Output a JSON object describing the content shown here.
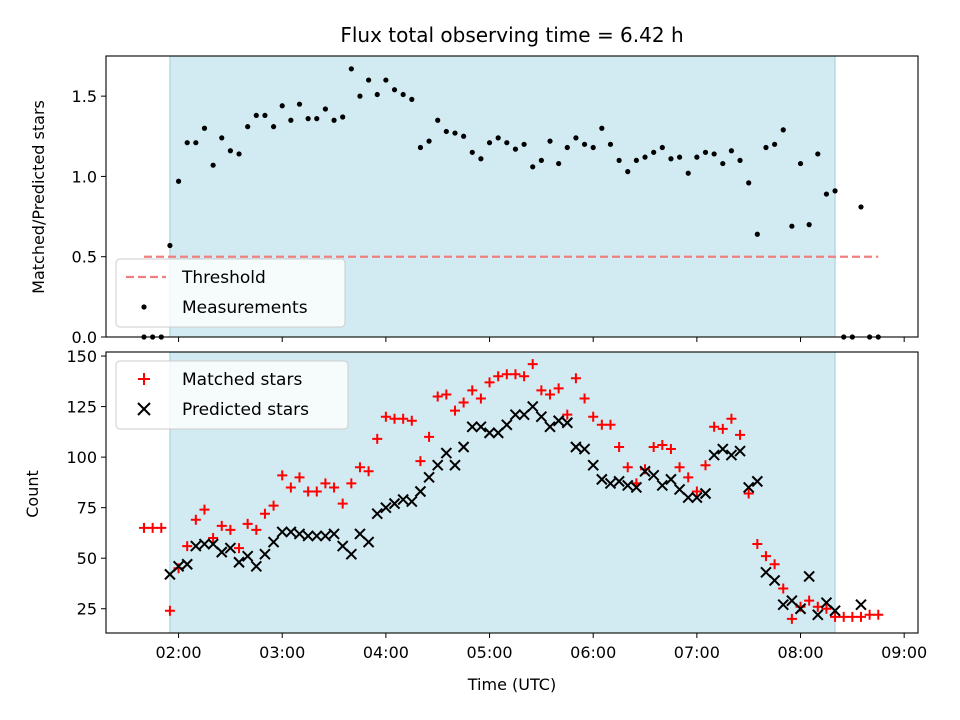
{
  "chart_data": [
    {
      "type": "scatter",
      "title": "Flux total observing time = 6.42 h",
      "xlabel": "",
      "ylabel": "Matched/Predicted stars",
      "xlim": [
        "01:18",
        "09:08"
      ],
      "ylim": [
        0,
        1.75
      ],
      "y_ticks": [
        0,
        0.5,
        1.0,
        1.5
      ],
      "y_tick_labels": [
        "0.0",
        "0.5",
        "1.0",
        "1.5"
      ],
      "shaded_range": [
        "01:55",
        "08:20"
      ],
      "shade_color": "#add8e6",
      "legend_position": "lower-left",
      "threshold": {
        "name": "Threshold",
        "y": 0.5,
        "x_range": [
          "01:40",
          "08:45"
        ],
        "color": "#f08080",
        "style": "dashed"
      },
      "series": [
        {
          "name": "Measurements",
          "marker": "dot",
          "color": "#000000",
          "points": [
            [
              "01:40",
              0.0
            ],
            [
              "01:45",
              0.0
            ],
            [
              "01:50",
              0.0
            ],
            [
              "01:55",
              0.57
            ],
            [
              "02:00",
              0.97
            ],
            [
              "02:05",
              1.21
            ],
            [
              "02:10",
              1.21
            ],
            [
              "02:15",
              1.3
            ],
            [
              "02:20",
              1.07
            ],
            [
              "02:25",
              1.24
            ],
            [
              "02:30",
              1.16
            ],
            [
              "02:35",
              1.14
            ],
            [
              "02:40",
              1.31
            ],
            [
              "02:45",
              1.38
            ],
            [
              "02:50",
              1.38
            ],
            [
              "02:55",
              1.31
            ],
            [
              "03:00",
              1.44
            ],
            [
              "03:05",
              1.35
            ],
            [
              "03:10",
              1.45
            ],
            [
              "03:15",
              1.36
            ],
            [
              "03:20",
              1.36
            ],
            [
              "03:25",
              1.42
            ],
            [
              "03:30",
              1.35
            ],
            [
              "03:35",
              1.37
            ],
            [
              "03:40",
              1.67
            ],
            [
              "03:45",
              1.5
            ],
            [
              "03:50",
              1.6
            ],
            [
              "03:55",
              1.51
            ],
            [
              "04:00",
              1.6
            ],
            [
              "04:05",
              1.54
            ],
            [
              "04:10",
              1.51
            ],
            [
              "04:15",
              1.48
            ],
            [
              "04:20",
              1.18
            ],
            [
              "04:25",
              1.22
            ],
            [
              "04:30",
              1.35
            ],
            [
              "04:35",
              1.28
            ],
            [
              "04:40",
              1.27
            ],
            [
              "04:45",
              1.25
            ],
            [
              "04:50",
              1.15
            ],
            [
              "04:55",
              1.11
            ],
            [
              "05:00",
              1.21
            ],
            [
              "05:05",
              1.24
            ],
            [
              "05:10",
              1.21
            ],
            [
              "05:15",
              1.17
            ],
            [
              "05:20",
              1.2
            ],
            [
              "05:25",
              1.06
            ],
            [
              "05:30",
              1.1
            ],
            [
              "05:35",
              1.22
            ],
            [
              "05:40",
              1.08
            ],
            [
              "05:45",
              1.18
            ],
            [
              "05:50",
              1.24
            ],
            [
              "05:55",
              1.2
            ],
            [
              "06:00",
              1.18
            ],
            [
              "06:05",
              1.3
            ],
            [
              "06:10",
              1.2
            ],
            [
              "06:15",
              1.1
            ],
            [
              "06:20",
              1.03
            ],
            [
              "06:25",
              1.1
            ],
            [
              "06:30",
              1.12
            ],
            [
              "06:35",
              1.15
            ],
            [
              "06:40",
              1.18
            ],
            [
              "06:45",
              1.11
            ],
            [
              "06:50",
              1.12
            ],
            [
              "06:55",
              1.02
            ],
            [
              "07:00",
              1.12
            ],
            [
              "07:05",
              1.15
            ],
            [
              "07:10",
              1.14
            ],
            [
              "07:15",
              1.08
            ],
            [
              "07:20",
              1.16
            ],
            [
              "07:25",
              1.1
            ],
            [
              "07:30",
              0.96
            ],
            [
              "07:35",
              0.64
            ],
            [
              "07:40",
              1.18
            ],
            [
              "07:45",
              1.2
            ],
            [
              "07:50",
              1.29
            ],
            [
              "07:55",
              0.69
            ],
            [
              "08:00",
              1.08
            ],
            [
              "08:05",
              0.7
            ],
            [
              "08:10",
              1.14
            ],
            [
              "08:15",
              0.89
            ],
            [
              "08:20",
              0.91
            ],
            [
              "08:25",
              0.0
            ],
            [
              "08:30",
              0.0
            ],
            [
              "08:35",
              0.81
            ],
            [
              "08:40",
              0.0
            ],
            [
              "08:45",
              0.0
            ]
          ]
        }
      ]
    },
    {
      "type": "scatter",
      "title": "",
      "xlabel": "Time (UTC)",
      "ylabel": "Count",
      "xlim": [
        "01:18",
        "09:08"
      ],
      "ylim": [
        13,
        152
      ],
      "y_ticks": [
        25,
        50,
        75,
        100,
        125,
        150
      ],
      "y_tick_labels": [
        "25",
        "50",
        "75",
        "100",
        "125",
        "150"
      ],
      "x_ticks": [
        "02:00",
        "03:00",
        "04:00",
        "05:00",
        "06:00",
        "07:00",
        "08:00",
        "09:00"
      ],
      "shaded_range": [
        "01:55",
        "08:20"
      ],
      "shade_color": "#add8e6",
      "legend_position": "upper-left",
      "series": [
        {
          "name": "Matched stars",
          "marker": "plus",
          "color": "#ff0000",
          "points": [
            [
              "01:40",
              65
            ],
            [
              "01:45",
              65
            ],
            [
              "01:50",
              65
            ],
            [
              "01:55",
              24
            ],
            [
              "02:00",
              45
            ],
            [
              "02:05",
              56
            ],
            [
              "02:10",
              69
            ],
            [
              "02:15",
              74
            ],
            [
              "02:20",
              60
            ],
            [
              "02:25",
              66
            ],
            [
              "02:30",
              64
            ],
            [
              "02:35",
              55
            ],
            [
              "02:40",
              67
            ],
            [
              "02:45",
              64
            ],
            [
              "02:50",
              72
            ],
            [
              "02:55",
              76
            ],
            [
              "03:00",
              91
            ],
            [
              "03:05",
              85
            ],
            [
              "03:10",
              90
            ],
            [
              "03:15",
              83
            ],
            [
              "03:20",
              83
            ],
            [
              "03:25",
              87
            ],
            [
              "03:30",
              85
            ],
            [
              "03:35",
              77
            ],
            [
              "03:40",
              87
            ],
            [
              "03:45",
              95
            ],
            [
              "03:50",
              93
            ],
            [
              "03:55",
              109
            ],
            [
              "04:00",
              120
            ],
            [
              "04:05",
              119
            ],
            [
              "04:10",
              119
            ],
            [
              "04:15",
              118
            ],
            [
              "04:20",
              98
            ],
            [
              "04:25",
              110
            ],
            [
              "04:30",
              130
            ],
            [
              "04:35",
              131
            ],
            [
              "04:40",
              123
            ],
            [
              "04:45",
              127
            ],
            [
              "04:50",
              133
            ],
            [
              "04:55",
              129
            ],
            [
              "05:00",
              137
            ],
            [
              "05:05",
              140
            ],
            [
              "05:10",
              141
            ],
            [
              "05:15",
              141
            ],
            [
              "05:20",
              140
            ],
            [
              "05:25",
              146
            ],
            [
              "05:30",
              133
            ],
            [
              "05:35",
              131
            ],
            [
              "05:40",
              134
            ],
            [
              "05:45",
              121
            ],
            [
              "05:50",
              139
            ],
            [
              "05:55",
              129
            ],
            [
              "06:00",
              120
            ],
            [
              "06:05",
              116
            ],
            [
              "06:10",
              116
            ],
            [
              "06:15",
              105
            ],
            [
              "06:20",
              95
            ],
            [
              "06:25",
              87
            ],
            [
              "06:30",
              94
            ],
            [
              "06:35",
              105
            ],
            [
              "06:40",
              106
            ],
            [
              "06:45",
              104
            ],
            [
              "06:50",
              95
            ],
            [
              "06:55",
              90
            ],
            [
              "07:00",
              83
            ],
            [
              "07:05",
              96
            ],
            [
              "07:10",
              115
            ],
            [
              "07:15",
              114
            ],
            [
              "07:20",
              119
            ],
            [
              "07:25",
              111
            ],
            [
              "07:30",
              82
            ],
            [
              "07:35",
              57
            ],
            [
              "07:40",
              51
            ],
            [
              "07:45",
              47
            ],
            [
              "07:50",
              35
            ],
            [
              "07:55",
              20
            ],
            [
              "08:00",
              26
            ],
            [
              "08:05",
              29
            ],
            [
              "08:10",
              26
            ],
            [
              "08:15",
              25
            ],
            [
              "08:20",
              21
            ],
            [
              "08:25",
              21
            ],
            [
              "08:30",
              21
            ],
            [
              "08:35",
              21
            ],
            [
              "08:40",
              22
            ],
            [
              "08:45",
              22
            ]
          ]
        },
        {
          "name": "Predicted stars",
          "marker": "x",
          "color": "#000000",
          "points": [
            [
              "01:55",
              42
            ],
            [
              "02:00",
              46
            ],
            [
              "02:05",
              47
            ],
            [
              "02:10",
              56
            ],
            [
              "02:15",
              57
            ],
            [
              "02:20",
              57
            ],
            [
              "02:25",
              53
            ],
            [
              "02:30",
              55
            ],
            [
              "02:35",
              48
            ],
            [
              "02:40",
              51
            ],
            [
              "02:45",
              46
            ],
            [
              "02:50",
              52
            ],
            [
              "02:55",
              58
            ],
            [
              "03:00",
              63
            ],
            [
              "03:05",
              63
            ],
            [
              "03:10",
              62
            ],
            [
              "03:15",
              61
            ],
            [
              "03:20",
              61
            ],
            [
              "03:25",
              61
            ],
            [
              "03:30",
              62
            ],
            [
              "03:35",
              56
            ],
            [
              "03:40",
              52
            ],
            [
              "03:45",
              62
            ],
            [
              "03:50",
              58
            ],
            [
              "03:55",
              72
            ],
            [
              "04:00",
              75
            ],
            [
              "04:05",
              77
            ],
            [
              "04:10",
              79
            ],
            [
              "04:15",
              78
            ],
            [
              "04:20",
              83
            ],
            [
              "04:25",
              90
            ],
            [
              "04:30",
              96
            ],
            [
              "04:35",
              102
            ],
            [
              "04:40",
              96
            ],
            [
              "04:45",
              105
            ],
            [
              "04:50",
              115
            ],
            [
              "04:55",
              115
            ],
            [
              "05:00",
              112
            ],
            [
              "05:05",
              112
            ],
            [
              "05:10",
              116
            ],
            [
              "05:15",
              121
            ],
            [
              "05:20",
              121
            ],
            [
              "05:25",
              125
            ],
            [
              "05:30",
              120
            ],
            [
              "05:35",
              115
            ],
            [
              "05:40",
              118
            ],
            [
              "05:45",
              117
            ],
            [
              "05:50",
              105
            ],
            [
              "05:55",
              104
            ],
            [
              "06:00",
              96
            ],
            [
              "06:05",
              89
            ],
            [
              "06:10",
              87
            ],
            [
              "06:15",
              88
            ],
            [
              "06:20",
              86
            ],
            [
              "06:25",
              85
            ],
            [
              "06:30",
              93
            ],
            [
              "06:35",
              91
            ],
            [
              "06:40",
              86
            ],
            [
              "06:45",
              89
            ],
            [
              "06:50",
              84
            ],
            [
              "06:55",
              80
            ],
            [
              "07:00",
              80
            ],
            [
              "07:05",
              82
            ],
            [
              "07:10",
              101
            ],
            [
              "07:15",
              104
            ],
            [
              "07:20",
              101
            ],
            [
              "07:25",
              103
            ],
            [
              "07:30",
              85
            ],
            [
              "07:35",
              88
            ],
            [
              "07:40",
              43
            ],
            [
              "07:45",
              39
            ],
            [
              "07:50",
              27
            ],
            [
              "07:55",
              29
            ],
            [
              "08:00",
              25
            ],
            [
              "08:05",
              41
            ],
            [
              "08:10",
              22
            ],
            [
              "08:15",
              28
            ],
            [
              "08:20",
              24
            ],
            [
              "08:35",
              27
            ]
          ]
        }
      ]
    }
  ]
}
